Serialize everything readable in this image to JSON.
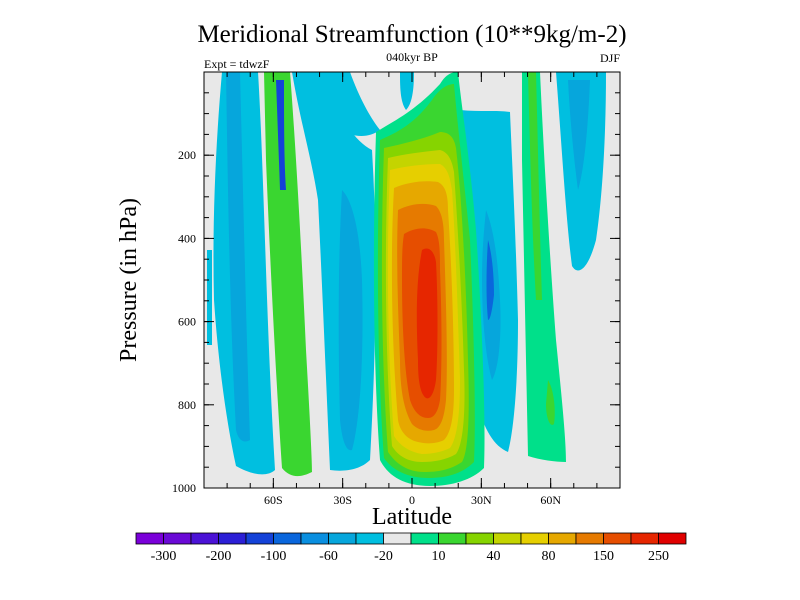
{
  "chart_data": {
    "type": "heatmap",
    "title": "Meridional Streamfunction (10**9kg/m-2)",
    "subtitle": "040kyr BP",
    "left_annotation": "Expt = tdwzF",
    "right_annotation": "DJF",
    "xlabel": "Latitude",
    "ylabel": "Pressure (in hPa)",
    "xlim": [
      -90,
      90
    ],
    "ylim": [
      1000,
      0
    ],
    "x_ticks": [
      {
        "value": -60,
        "label": "60S"
      },
      {
        "value": -30,
        "label": "30S"
      },
      {
        "value": 0,
        "label": "0"
      },
      {
        "value": 30,
        "label": "30N"
      },
      {
        "value": 60,
        "label": "60N"
      }
    ],
    "y_ticks": [
      {
        "value": 200,
        "label": "200"
      },
      {
        "value": 400,
        "label": "400"
      },
      {
        "value": 600,
        "label": "600"
      },
      {
        "value": 800,
        "label": "800"
      },
      {
        "value": 1000,
        "label": "1000"
      }
    ],
    "colorbar": {
      "colors": [
        "#7a00d9",
        "#6a0ad6",
        "#4b12d6",
        "#2c1fd6",
        "#1442d8",
        "#0a66dc",
        "#0a8fe0",
        "#06a6dc",
        "#00bfe0",
        "#e8e8e8",
        "#00e08a",
        "#3ad630",
        "#86d400",
        "#c4d400",
        "#e6cf00",
        "#e6a800",
        "#e67a00",
        "#e64e00",
        "#e62600",
        "#e00000"
      ],
      "labels": [
        {
          "index": 1,
          "text": "-300"
        },
        {
          "index": 3,
          "text": "-200"
        },
        {
          "index": 5,
          "text": "-100"
        },
        {
          "index": 7,
          "text": "-60"
        },
        {
          "index": 9,
          "text": "-20"
        },
        {
          "index": 11,
          "text": "10"
        },
        {
          "index": 13,
          "text": "40"
        },
        {
          "index": 15,
          "text": "80"
        },
        {
          "index": 17,
          "text": "150"
        },
        {
          "index": 19,
          "text": "250"
        }
      ]
    },
    "grid": false
  }
}
